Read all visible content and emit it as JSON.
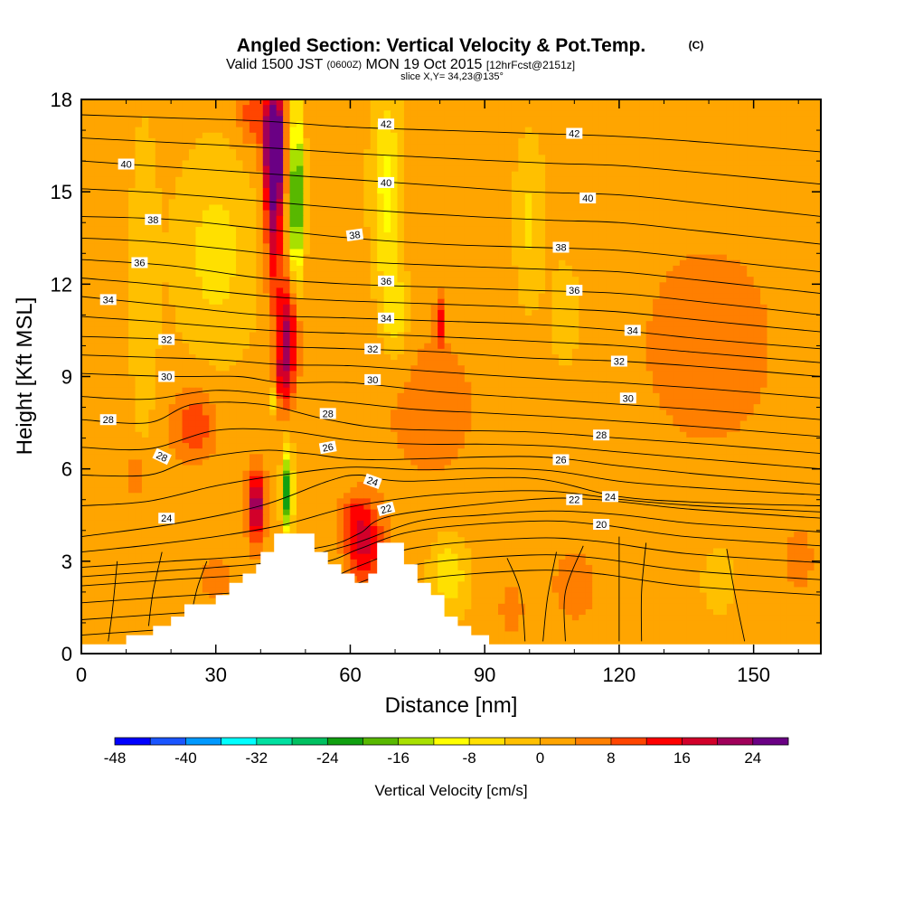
{
  "header": {
    "title": "Angled Section: Vertical Velocity & Pot.Temp.",
    "title_unit": "(C)",
    "valid_pre": "Valid 1500 JST",
    "valid_zulu": "(0600Z)",
    "valid_date": "MON 19 Oct 2015",
    "valid_fcst": "[12hrFcst@2151z]",
    "slice": "slice X,Y= 34,23@135°"
  },
  "chart_data": {
    "type": "heatmap",
    "xlabel": "Distance [nm]",
    "ylabel": "Height [Kft MSL]",
    "xlim": [
      0,
      165
    ],
    "ylim": [
      0,
      18
    ],
    "x_ticks": [
      "0",
      "30",
      "60",
      "90",
      "120",
      "150"
    ],
    "y_ticks": [
      "0",
      "3",
      "6",
      "9",
      "12",
      "15",
      "18"
    ],
    "colorbar": {
      "label": "Vertical Velocity [cm/s]",
      "tick_labels": [
        "-48",
        "-40",
        "-32",
        "-24",
        "-16",
        "-8",
        "0",
        "8",
        "16",
        "24"
      ],
      "range": [
        -48,
        28
      ],
      "step": 4,
      "colors": [
        "#0000ff",
        "#1a55ff",
        "#0099ff",
        "#00ffff",
        "#00e0a0",
        "#00c060",
        "#10a010",
        "#58b800",
        "#a8e000",
        "#ffff00",
        "#ffe000",
        "#ffc000",
        "#ffa500",
        "#ff7f00",
        "#ff4500",
        "#ff0000",
        "#d2002a",
        "#a0005a",
        "#6a0084"
      ]
    },
    "terrain": [
      [
        0,
        0.3
      ],
      [
        10,
        0.3
      ],
      [
        10,
        0.6
      ],
      [
        16,
        0.6
      ],
      [
        16,
        0.9
      ],
      [
        20,
        0.9
      ],
      [
        20,
        1.2
      ],
      [
        23,
        1.2
      ],
      [
        23,
        1.6
      ],
      [
        30,
        1.6
      ],
      [
        30,
        1.9
      ],
      [
        33,
        1.9
      ],
      [
        33,
        2.3
      ],
      [
        36,
        2.3
      ],
      [
        36,
        2.6
      ],
      [
        39,
        2.6
      ],
      [
        39,
        2.9
      ],
      [
        40,
        2.9
      ],
      [
        40,
        3.3
      ],
      [
        43,
        3.3
      ],
      [
        43,
        3.9
      ],
      [
        52,
        3.9
      ],
      [
        52,
        3.3
      ],
      [
        55,
        3.3
      ],
      [
        55,
        2.9
      ],
      [
        58,
        2.9
      ],
      [
        58,
        2.6
      ],
      [
        61,
        2.6
      ],
      [
        61,
        2.3
      ],
      [
        64,
        2.3
      ],
      [
        64,
        2.6
      ],
      [
        66,
        2.6
      ],
      [
        66,
        3.6
      ],
      [
        72,
        3.6
      ],
      [
        72,
        2.9
      ],
      [
        75,
        2.9
      ],
      [
        75,
        2.3
      ],
      [
        78,
        2.3
      ],
      [
        78,
        1.9
      ],
      [
        81,
        1.9
      ],
      [
        81,
        1.2
      ],
      [
        84,
        1.2
      ],
      [
        84,
        0.9
      ],
      [
        87,
        0.9
      ],
      [
        87,
        0.6
      ],
      [
        91,
        0.6
      ],
      [
        91,
        0.3
      ],
      [
        165,
        0.3
      ]
    ],
    "velocity_features": [
      {
        "x": 43,
        "y": 16.7,
        "sx": 2.2,
        "sy": 1.6,
        "v": 30
      },
      {
        "x": 43,
        "y": 14.5,
        "sx": 2.0,
        "sy": 2.8,
        "v": 20
      },
      {
        "x": 46,
        "y": 10.5,
        "sx": 2.5,
        "sy": 1.6,
        "v": 19
      },
      {
        "x": 45,
        "y": 8.8,
        "sx": 2.2,
        "sy": 1.0,
        "v": 12
      },
      {
        "x": 39,
        "y": 4.8,
        "sx": 2.0,
        "sy": 1.2,
        "v": 22
      },
      {
        "x": 63,
        "y": 3.6,
        "sx": 4.0,
        "sy": 1.3,
        "v": 17
      },
      {
        "x": 25,
        "y": 7.4,
        "sx": 5.0,
        "sy": 1.2,
        "v": 10
      },
      {
        "x": 38,
        "y": 17.5,
        "sx": 3.0,
        "sy": 1.0,
        "v": 9
      },
      {
        "x": 48,
        "y": 14.8,
        "sx": 1.4,
        "sy": 2.8,
        "v": -26
      },
      {
        "x": 46,
        "y": 5.2,
        "sx": 1.1,
        "sy": 1.3,
        "v": -26
      },
      {
        "x": 43,
        "y": 8.3,
        "sx": 1.0,
        "sy": 0.5,
        "v": -12
      },
      {
        "x": 60,
        "y": 4.6,
        "sx": 3.0,
        "sy": 0.5,
        "v": 6
      },
      {
        "x": 68,
        "y": 15.0,
        "sx": 3.0,
        "sy": 3.0,
        "v": -11
      },
      {
        "x": 70,
        "y": 11.0,
        "sx": 3.0,
        "sy": 1.5,
        "v": -9
      },
      {
        "x": 30,
        "y": 13.0,
        "sx": 8.0,
        "sy": 3.0,
        "v": -7
      },
      {
        "x": 14,
        "y": 12.0,
        "sx": 3.0,
        "sy": 5.0,
        "v": -4
      },
      {
        "x": 100,
        "y": 14.0,
        "sx": 3.0,
        "sy": 2.5,
        "v": -6
      },
      {
        "x": 108,
        "y": 11.0,
        "sx": 3.0,
        "sy": 1.5,
        "v": -5
      },
      {
        "x": 82,
        "y": 2.6,
        "sx": 4.0,
        "sy": 1.2,
        "v": -9
      },
      {
        "x": 142,
        "y": 2.4,
        "sx": 3.0,
        "sy": 1.0,
        "v": -5
      },
      {
        "x": 78,
        "y": 8.0,
        "sx": 15.0,
        "sy": 3.5,
        "v": 4
      },
      {
        "x": 140,
        "y": 10.0,
        "sx": 18.0,
        "sy": 4.0,
        "v": 5
      },
      {
        "x": 110,
        "y": 2.2,
        "sx": 5.0,
        "sy": 1.2,
        "v": 6
      },
      {
        "x": 96,
        "y": 1.5,
        "sx": 3.0,
        "sy": 1.0,
        "v": 5
      },
      {
        "x": 30,
        "y": 2.4,
        "sx": 4.0,
        "sy": 0.8,
        "v": 5
      },
      {
        "x": 80,
        "y": 10.8,
        "sx": 0.9,
        "sy": 0.8,
        "v": 13
      },
      {
        "x": 12,
        "y": 5.8,
        "sx": 2.0,
        "sy": 0.7,
        "v": 7
      },
      {
        "x": 160,
        "y": 3.0,
        "sx": 5.0,
        "sy": 1.5,
        "v": 4
      }
    ],
    "theta_contours": [
      {
        "level": 20,
        "pts": [
          [
            0,
            2.2
          ],
          [
            20,
            2.4
          ],
          [
            40,
            2.6
          ],
          [
            55,
            3.0
          ],
          [
            62,
            3.4
          ],
          [
            75,
            4.0
          ],
          [
            100,
            4.3
          ],
          [
            115,
            4.2
          ],
          [
            135,
            3.8
          ],
          [
            165,
            3.5
          ]
        ]
      },
      {
        "level": 22,
        "pts": [
          [
            0,
            2.8
          ],
          [
            20,
            3.0
          ],
          [
            40,
            3.2
          ],
          [
            55,
            3.5
          ],
          [
            62,
            3.9
          ],
          [
            70,
            4.5
          ],
          [
            100,
            5.0
          ],
          [
            115,
            5.0
          ],
          [
            135,
            4.7
          ],
          [
            165,
            4.4
          ]
        ]
      },
      {
        "level": 24,
        "pts": [
          [
            0,
            3.8
          ],
          [
            20,
            4.2
          ],
          [
            40,
            4.8
          ],
          [
            55,
            5.6
          ],
          [
            62,
            5.8
          ],
          [
            72,
            5.6
          ],
          [
            100,
            5.7
          ],
          [
            120,
            5.1
          ],
          [
            140,
            4.9
          ],
          [
            165,
            4.8
          ]
        ]
      },
      {
        "level": 26,
        "pts": [
          [
            0,
            5.8
          ],
          [
            15,
            5.8
          ],
          [
            25,
            6.3
          ],
          [
            40,
            6.6
          ],
          [
            50,
            6.5
          ],
          [
            65,
            6.3
          ],
          [
            100,
            6.4
          ],
          [
            120,
            6.1
          ],
          [
            140,
            5.8
          ],
          [
            165,
            5.5
          ]
        ]
      },
      {
        "level": 28,
        "pts": [
          [
            0,
            7.6
          ],
          [
            15,
            7.5
          ],
          [
            25,
            8.1
          ],
          [
            40,
            8.1
          ],
          [
            55,
            7.6
          ],
          [
            70,
            7.3
          ],
          [
            100,
            7.2
          ],
          [
            120,
            7.0
          ],
          [
            140,
            6.8
          ],
          [
            165,
            6.5
          ]
        ]
      },
      {
        "level": 30,
        "pts": [
          [
            0,
            9.1
          ],
          [
            20,
            9.0
          ],
          [
            35,
            9.0
          ],
          [
            45,
            8.8
          ],
          [
            60,
            8.8
          ],
          [
            80,
            8.5
          ],
          [
            100,
            8.3
          ],
          [
            120,
            8.1
          ],
          [
            140,
            7.9
          ],
          [
            165,
            7.6
          ]
        ]
      },
      {
        "level": 32,
        "pts": [
          [
            0,
            10.3
          ],
          [
            20,
            10.2
          ],
          [
            40,
            10.0
          ],
          [
            60,
            9.9
          ],
          [
            80,
            9.8
          ],
          [
            100,
            9.6
          ],
          [
            120,
            9.5
          ],
          [
            140,
            9.3
          ],
          [
            165,
            9.0
          ]
        ]
      },
      {
        "level": 34,
        "pts": [
          [
            0,
            11.6
          ],
          [
            20,
            11.3
          ],
          [
            40,
            11.0
          ],
          [
            60,
            10.9
          ],
          [
            80,
            10.8
          ],
          [
            100,
            10.7
          ],
          [
            120,
            10.5
          ],
          [
            140,
            10.2
          ],
          [
            165,
            9.9
          ]
        ]
      },
      {
        "level": 36,
        "pts": [
          [
            0,
            12.8
          ],
          [
            20,
            12.6
          ],
          [
            40,
            12.2
          ],
          [
            60,
            12.0
          ],
          [
            80,
            11.9
          ],
          [
            100,
            11.8
          ],
          [
            120,
            11.7
          ],
          [
            140,
            11.4
          ],
          [
            165,
            11.0
          ]
        ]
      },
      {
        "level": 38,
        "pts": [
          [
            0,
            14.2
          ],
          [
            20,
            14.1
          ],
          [
            40,
            13.8
          ],
          [
            60,
            13.5
          ],
          [
            80,
            13.3
          ],
          [
            100,
            13.2
          ],
          [
            120,
            13.1
          ],
          [
            140,
            12.8
          ],
          [
            165,
            12.4
          ]
        ]
      },
      {
        "level": 40,
        "pts": [
          [
            0,
            16.0
          ],
          [
            20,
            15.8
          ],
          [
            40,
            15.6
          ],
          [
            60,
            15.4
          ],
          [
            80,
            15.2
          ],
          [
            100,
            15.0
          ],
          [
            120,
            14.9
          ],
          [
            140,
            14.6
          ],
          [
            165,
            14.2
          ]
        ]
      },
      {
        "level": 42,
        "pts": [
          [
            0,
            17.5
          ],
          [
            20,
            17.4
          ],
          [
            40,
            17.3
          ],
          [
            60,
            17.1
          ],
          [
            80,
            17.0
          ],
          [
            100,
            16.9
          ],
          [
            120,
            16.8
          ],
          [
            140,
            16.6
          ],
          [
            165,
            16.3
          ]
        ]
      }
    ],
    "theta_labels": [
      {
        "t": "42",
        "x": 68,
        "y": 17.2,
        "r": 0
      },
      {
        "t": "42",
        "x": 110,
        "y": 16.9,
        "r": 0
      },
      {
        "t": "40",
        "x": 10,
        "y": 15.9,
        "r": 0
      },
      {
        "t": "40",
        "x": 68,
        "y": 15.3,
        "r": 0
      },
      {
        "t": "40",
        "x": 113,
        "y": 14.8,
        "r": 0
      },
      {
        "t": "38",
        "x": 16,
        "y": 14.1,
        "r": 0
      },
      {
        "t": "38",
        "x": 61,
        "y": 13.6,
        "r": -8
      },
      {
        "t": "38",
        "x": 107,
        "y": 13.2,
        "r": 0
      },
      {
        "t": "36",
        "x": 13,
        "y": 12.7,
        "r": 0
      },
      {
        "t": "36",
        "x": 68,
        "y": 12.1,
        "r": 0
      },
      {
        "t": "36",
        "x": 110,
        "y": 11.8,
        "r": 0
      },
      {
        "t": "34",
        "x": 6,
        "y": 11.5,
        "r": 0
      },
      {
        "t": "34",
        "x": 68,
        "y": 10.9,
        "r": 0
      },
      {
        "t": "34",
        "x": 123,
        "y": 10.5,
        "r": 0
      },
      {
        "t": "32",
        "x": 19,
        "y": 10.2,
        "r": 0
      },
      {
        "t": "32",
        "x": 65,
        "y": 9.9,
        "r": 0
      },
      {
        "t": "32",
        "x": 120,
        "y": 9.5,
        "r": 0
      },
      {
        "t": "30",
        "x": 19,
        "y": 9.0,
        "r": 0
      },
      {
        "t": "30",
        "x": 65,
        "y": 8.9,
        "r": 0
      },
      {
        "t": "30",
        "x": 122,
        "y": 8.3,
        "r": 0
      },
      {
        "t": "28",
        "x": 6,
        "y": 7.6,
        "r": 0
      },
      {
        "t": "28",
        "x": 55,
        "y": 7.8,
        "r": 0
      },
      {
        "t": "28",
        "x": 116,
        "y": 7.1,
        "r": 0
      },
      {
        "t": "28",
        "x": 18,
        "y": 6.4,
        "r": 25
      },
      {
        "t": "26",
        "x": 55,
        "y": 6.7,
        "r": -10
      },
      {
        "t": "26",
        "x": 107,
        "y": 6.3,
        "r": 0
      },
      {
        "t": "24",
        "x": 65,
        "y": 5.6,
        "r": 20
      },
      {
        "t": "24",
        "x": 118,
        "y": 5.1,
        "r": 0
      },
      {
        "t": "24",
        "x": 19,
        "y": 4.4,
        "r": 0
      },
      {
        "t": "22",
        "x": 68,
        "y": 4.7,
        "r": -15
      },
      {
        "t": "22",
        "x": 110,
        "y": 5.0,
        "r": 0
      },
      {
        "t": "20",
        "x": 116,
        "y": 4.2,
        "r": 0
      }
    ],
    "isotach_lines": [
      [
        [
          8,
          3.0
        ],
        [
          7,
          1.5
        ],
        [
          6,
          0.4
        ]
      ],
      [
        [
          18,
          3.3
        ],
        [
          16,
          2.0
        ],
        [
          15,
          0.9
        ]
      ],
      [
        [
          28,
          3.0
        ],
        [
          26,
          2.2
        ],
        [
          25,
          1.6
        ]
      ],
      [
        [
          95,
          3.1
        ],
        [
          98,
          2.0
        ],
        [
          99,
          0.4
        ]
      ],
      [
        [
          106,
          3.3
        ],
        [
          104,
          1.8
        ],
        [
          103,
          0.4
        ]
      ],
      [
        [
          112,
          3.5
        ],
        [
          108,
          2.0
        ],
        [
          108,
          0.4
        ]
      ],
      [
        [
          120,
          3.8
        ],
        [
          120,
          2.0
        ],
        [
          120,
          0.4
        ]
      ],
      [
        [
          126,
          3.6
        ],
        [
          125,
          2.0
        ],
        [
          125,
          0.4
        ]
      ],
      [
        [
          144,
          3.4
        ],
        [
          146,
          1.8
        ],
        [
          148,
          0.4
        ]
      ]
    ]
  }
}
